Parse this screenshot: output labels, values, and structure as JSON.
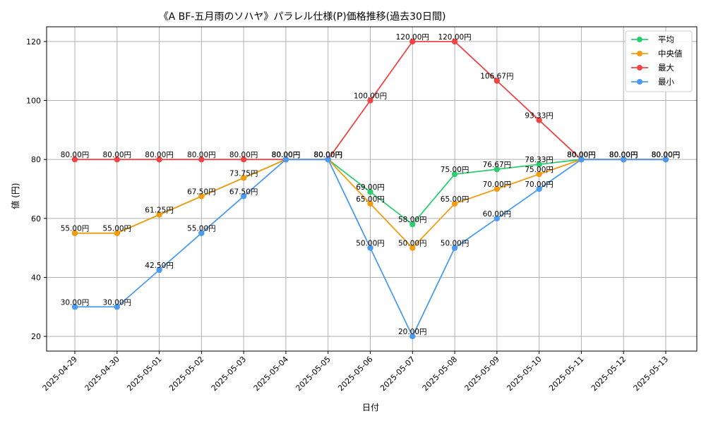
{
  "chart_data": {
    "type": "line",
    "title": "《A BF-五月雨のソハヤ》パラレル仕様(P)価格推移(過去30日間)",
    "xlabel": "日付",
    "ylabel": "値 (円)",
    "ylim": [
      15,
      125
    ],
    "yticks": [
      20,
      40,
      60,
      80,
      100,
      120
    ],
    "grid": true,
    "legend_position": "top-right",
    "categories": [
      "2025-04-29",
      "2025-04-30",
      "2025-05-01",
      "2025-05-02",
      "2025-05-03",
      "2025-05-04",
      "2025-05-05",
      "2025-05-06",
      "2025-05-07",
      "2025-05-08",
      "2025-05-09",
      "2025-05-10",
      "2025-05-11",
      "2025-05-12",
      "2025-05-13"
    ],
    "series": [
      {
        "name": "平均",
        "color": "#2ecc71",
        "values": [
          55,
          55,
          61.25,
          67.5,
          73.75,
          80,
          80,
          69,
          58,
          75,
          76.67,
          78.33,
          80,
          80,
          80
        ],
        "labels": [
          "",
          "",
          "",
          "",
          "",
          "",
          "",
          "69.00円",
          "58.00円",
          "75.00円",
          "76.67円",
          "78.33円",
          "",
          "",
          ""
        ]
      },
      {
        "name": "中央値",
        "color": "#f39c12",
        "values": [
          55,
          55,
          61.25,
          67.5,
          73.75,
          80,
          80,
          65,
          50,
          65,
          70,
          75,
          80,
          80,
          80
        ],
        "labels": [
          "55.00円",
          "55.00円",
          "61.25円",
          "67.50円",
          "73.75円",
          "80.00円",
          "80.00円",
          "65.00円",
          "50.00円",
          "65.00円",
          "70.00円",
          "75.00円",
          "80.00円",
          "80.00円",
          "80.00円"
        ]
      },
      {
        "name": "最大",
        "color": "#ef4444",
        "values": [
          80,
          80,
          80,
          80,
          80,
          80,
          80,
          100,
          120,
          120,
          106.67,
          93.33,
          80,
          80,
          80
        ],
        "labels": [
          "80.00円",
          "80.00円",
          "80.00円",
          "80.00円",
          "80.00円",
          "80.00円",
          "80.00円",
          "100.00円",
          "120.00円",
          "120.00円",
          "106.67円",
          "93.33円",
          "80.00円",
          "80.00円",
          "80.00円"
        ]
      },
      {
        "name": "最小",
        "color": "#4a9af0",
        "values": [
          30,
          30,
          42.5,
          55,
          67.5,
          80,
          80,
          50,
          20,
          50,
          60,
          70,
          80,
          80,
          80
        ],
        "labels": [
          "30.00円",
          "30.00円",
          "42.50円",
          "55.00円",
          "67.50円",
          "80.00円",
          "80.00円",
          "50.00円",
          "20.00円",
          "50.00円",
          "60.00円",
          "70.00円",
          "80.00円",
          "80.00円",
          "80.00円"
        ]
      }
    ]
  }
}
